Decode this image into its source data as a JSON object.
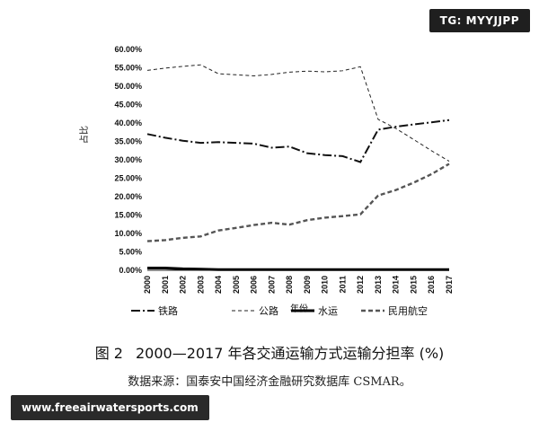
{
  "watermark": {
    "badge_text": "TG: MYYJJPP",
    "site_text": "www.freeairwatersports.com"
  },
  "caption": {
    "figure_number": "图 2",
    "title": "2000—2017 年各交通运输方式运输分担率 (%)"
  },
  "source_note": "数据来源：国泰安中国经济金融研究数据库 CSMAR。",
  "chart_data": {
    "type": "line",
    "ylabel": "占比",
    "xlabel": "年份",
    "ylim": [
      0,
      60
    ],
    "y_ticks": [
      "0.00%",
      "5.00%",
      "10.00%",
      "15.00%",
      "20.00%",
      "25.00%",
      "30.00%",
      "35.00%",
      "40.00%",
      "45.00%",
      "50.00%",
      "55.00%",
      "60.00%"
    ],
    "x": [
      "2000",
      "2001",
      "2002",
      "2003",
      "2004",
      "2005",
      "2006",
      "2007",
      "2008",
      "2009",
      "2010",
      "2011",
      "2012",
      "2013",
      "2014",
      "2015",
      "2016",
      "2017"
    ],
    "legend_position": "bottom",
    "series": [
      {
        "name": "铁路",
        "color": "#111111",
        "dash": "dashdot",
        "values": [
          37.0,
          36.0,
          35.2,
          34.6,
          34.8,
          34.6,
          34.4,
          33.3,
          33.6,
          31.8,
          31.3,
          31.0,
          29.4,
          38.2,
          39.0,
          39.6,
          40.2,
          40.8
        ]
      },
      {
        "name": "公路",
        "color": "#222222",
        "dash": "dashed",
        "values": [
          54.3,
          54.9,
          55.4,
          55.8,
          53.4,
          53.1,
          52.8,
          53.2,
          53.8,
          54.1,
          53.9,
          54.2,
          55.3,
          41.0,
          38.5,
          35.5,
          32.5,
          29.6
        ]
      },
      {
        "name": "水运",
        "color": "#000000",
        "dash": "solid",
        "values": [
          0.6,
          0.6,
          0.4,
          0.3,
          0.2,
          0.2,
          0.2,
          0.2,
          0.2,
          0.2,
          0.2,
          0.2,
          0.2,
          0.2,
          0.2,
          0.2,
          0.2,
          0.2
        ]
      },
      {
        "name": "民用航空",
        "color": "#555555",
        "dash": "dashed-thick",
        "values": [
          7.9,
          8.2,
          8.8,
          9.2,
          10.8,
          11.5,
          12.3,
          12.9,
          12.4,
          13.6,
          14.3,
          14.7,
          15.2,
          20.3,
          21.8,
          23.8,
          26.1,
          28.9
        ]
      }
    ]
  }
}
